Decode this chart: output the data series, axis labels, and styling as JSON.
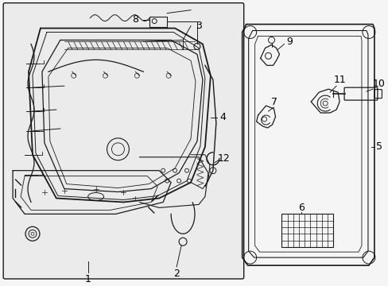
{
  "bg_color": "#f5f5f5",
  "line_color": "#1a1a1a",
  "fig_width": 4.89,
  "fig_height": 3.6,
  "dpi": 100
}
